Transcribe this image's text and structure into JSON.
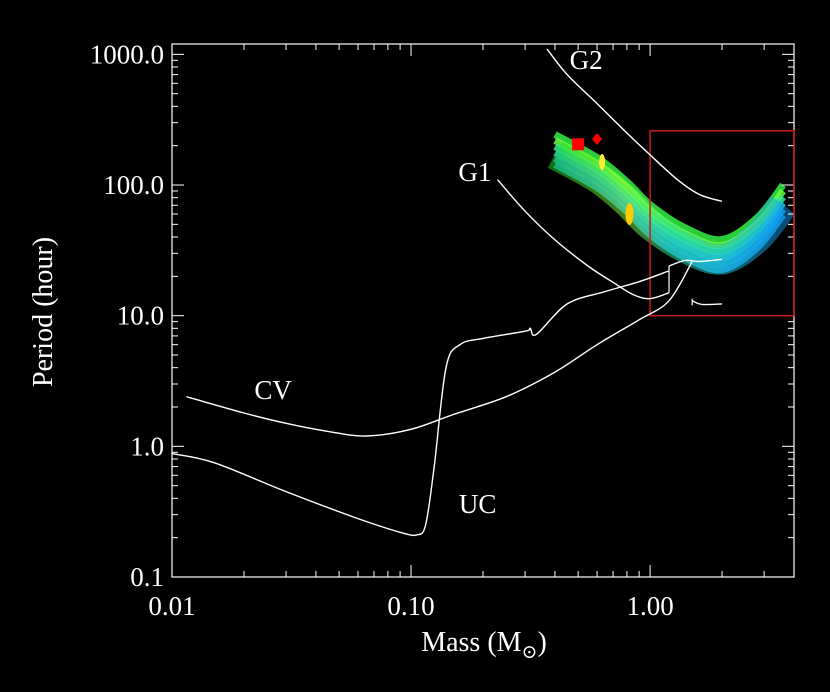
{
  "chart_data": {
    "type": "line",
    "title": "",
    "xlabel": "Mass (M",
    "xlabel_symbol": "⊙",
    "xlabel_close": ")",
    "ylabel": "Period (hour)",
    "xscale": "log",
    "yscale": "log",
    "xlim": [
      0.01,
      4.0
    ],
    "ylim": [
      0.1,
      1200
    ],
    "xticks": [
      0.01,
      0.1,
      1.0
    ],
    "xtick_labels": [
      "0.01",
      "0.10",
      "1.00"
    ],
    "yticks": [
      0.1,
      1.0,
      10.0,
      100.0,
      1000.0
    ],
    "ytick_labels": [
      "0.1",
      "1.0",
      "10.0",
      "100.0",
      "1000.0"
    ],
    "grid": false,
    "colors": {
      "background": "#000000",
      "axes": "#ffffff",
      "curves": "#ffffff",
      "box": "#cc1a1a",
      "marker": "#ff0000"
    },
    "series": [
      {
        "name": "CV",
        "x": [
          0.0115,
          0.02,
          0.03,
          0.045,
          0.065,
          0.1,
          0.15,
          0.25,
          0.4,
          0.6,
          0.9,
          1.2,
          1.5
        ],
        "y": [
          2.4,
          1.8,
          1.5,
          1.3,
          1.2,
          1.35,
          1.75,
          2.4,
          3.7,
          6.0,
          9.3,
          13.0,
          26.0
        ]
      },
      {
        "name": "UC",
        "x": [
          0.01,
          0.015,
          0.03,
          0.06,
          0.09,
          0.1055,
          0.115,
          0.125,
          0.14,
          0.16,
          0.2,
          0.3,
          0.315,
          0.335,
          0.45,
          0.65,
          0.9,
          1.2
        ],
        "y": [
          0.88,
          0.75,
          0.45,
          0.28,
          0.22,
          0.21,
          0.25,
          0.7,
          4.0,
          6.0,
          6.7,
          7.6,
          8.0,
          7.2,
          12.3,
          15.3,
          18.2,
          22.0
        ]
      },
      {
        "name": "G1",
        "x": [
          0.23,
          0.3,
          0.4,
          0.55,
          0.7,
          0.85,
          1.0,
          1.2
        ],
        "y": [
          110,
          63,
          38,
          24,
          18,
          14.5,
          13.5,
          15.0
        ]
      },
      {
        "name": "G2",
        "x": [
          0.37,
          0.45,
          0.6,
          0.8,
          1.0,
          1.3,
          1.6,
          2.0
        ],
        "y": [
          1100,
          700,
          420,
          250,
          170,
          110,
          85,
          75
        ]
      },
      {
        "name": "",
        "x": [
          1.5,
          1.65,
          2.0
        ],
        "y": [
          13.0,
          12.2,
          12.3
        ]
      },
      {
        "name": "",
        "x": [
          1.2,
          1.4,
          1.6,
          2.0
        ],
        "y": [
          24.0,
          26.5,
          26.0,
          27.0
        ]
      }
    ],
    "curve_labels": [
      {
        "text": "CV",
        "x": 0.0265,
        "y": 2.3
      },
      {
        "text": "UC",
        "x": 0.19,
        "y": 0.31
      },
      {
        "text": "G1",
        "x": 0.185,
        "y": 107
      },
      {
        "text": "G2",
        "x": 0.54,
        "y": 770
      }
    ],
    "highlight_box": {
      "x": [
        1.0,
        4.0
      ],
      "y": [
        10.0,
        260.0
      ]
    },
    "color_band": {
      "centerline": {
        "x": [
          0.4,
          0.6,
          0.8,
          1.0,
          1.4,
          2.0,
          2.8,
          3.6
        ],
        "y": [
          165,
          110,
          72,
          48,
          32,
          26,
          38,
          68
        ]
      },
      "stops": [
        "#22dd22",
        "#99ff33",
        "#33ee88",
        "#22ccdd",
        "#1199ee"
      ]
    },
    "markers": [
      {
        "x": 0.5,
        "y": 205,
        "shape": "square"
      },
      {
        "x": 0.6,
        "y": 225,
        "shape": "diamond"
      }
    ]
  }
}
